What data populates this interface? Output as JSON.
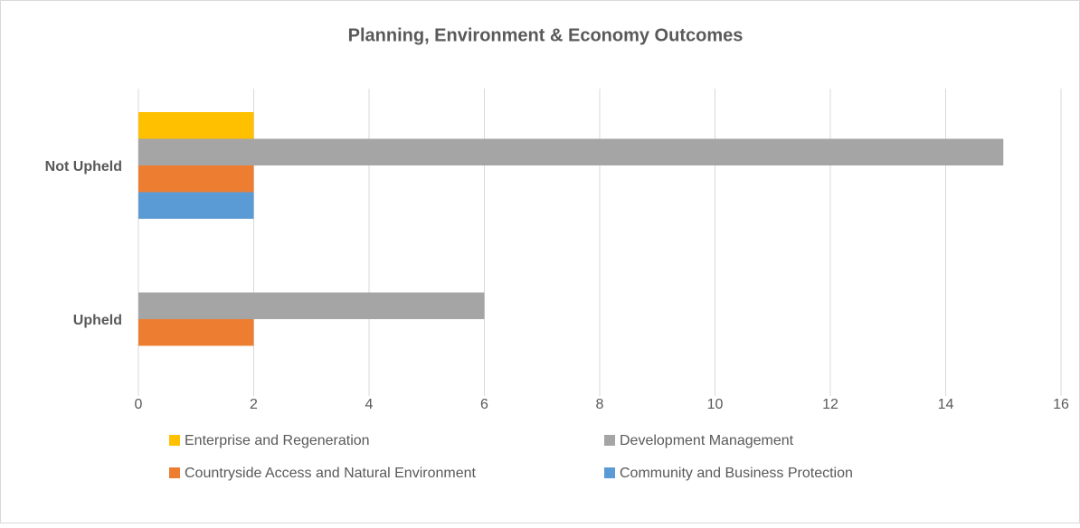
{
  "chart_data": {
    "type": "hbar",
    "title": "Planning, Environment & Economy Outcomes",
    "categories": [
      "Not Upheld",
      "Upheld"
    ],
    "series": [
      {
        "name": "Enterprise and Regeneration",
        "color": "#ffc000",
        "values": [
          2,
          0
        ]
      },
      {
        "name": "Development Management",
        "color": "#a5a5a5",
        "values": [
          15,
          6
        ]
      },
      {
        "name": "Countryside Access and Natural Environment",
        "color": "#ed7d31",
        "values": [
          2,
          2
        ]
      },
      {
        "name": "Community and Business Protection",
        "color": "#5b9bd5",
        "values": [
          2,
          0
        ]
      }
    ],
    "xlim": [
      0,
      16
    ],
    "xticks": [
      0,
      2,
      4,
      6,
      8,
      10,
      12,
      14,
      16
    ],
    "grid": true
  }
}
